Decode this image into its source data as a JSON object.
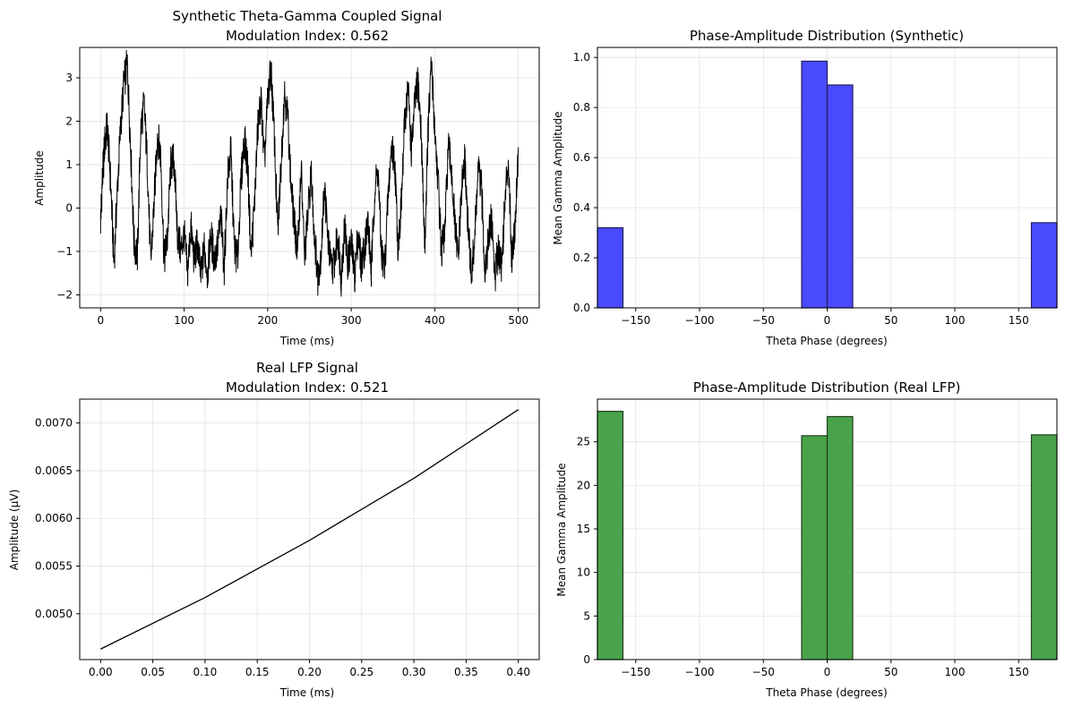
{
  "chart_data": [
    {
      "type": "line",
      "title": "Synthetic Theta-Gamma Coupled Signal",
      "subtitle": "Modulation Index: 0.562",
      "xlabel": "Time (ms)",
      "ylabel": "Amplitude",
      "xlim": [
        -25,
        525
      ],
      "ylim": [
        -2.3,
        3.7
      ],
      "xticks": [
        0,
        100,
        200,
        300,
        400,
        500
      ],
      "xtick_labels": [
        "0",
        "100",
        "200",
        "300",
        "400",
        "500"
      ],
      "yticks": [
        -2,
        -1,
        0,
        1,
        2,
        3
      ],
      "ytick_labels": [
        "−2",
        "−1",
        "0",
        "1",
        "2",
        "3"
      ],
      "grid": true,
      "line_color": "#000000",
      "series": [
        {
          "x": [
            0,
            2,
            5,
            8,
            12,
            16,
            20,
            24,
            28,
            32,
            36,
            40,
            44,
            48,
            52,
            56,
            60,
            64,
            68,
            72,
            76,
            80,
            84,
            88,
            92,
            96,
            100,
            104,
            108,
            112,
            116,
            120,
            124,
            128,
            132,
            136,
            140,
            144,
            148,
            152,
            156,
            160,
            164,
            168,
            172,
            176,
            180,
            184,
            188,
            192,
            196,
            200,
            204,
            208,
            212,
            216,
            220,
            224,
            228,
            232,
            236,
            240,
            244,
            248,
            252,
            256,
            260,
            264,
            268,
            272,
            276,
            280,
            284,
            288,
            292,
            296,
            300,
            304,
            308,
            312,
            316,
            320,
            324,
            328,
            332,
            336,
            340,
            344,
            348,
            352,
            356,
            360,
            364,
            368,
            372,
            376,
            380,
            384,
            388,
            392,
            396,
            400,
            404,
            408,
            412,
            416,
            420,
            424,
            428,
            432,
            436,
            440,
            444,
            448,
            452,
            456,
            460,
            464,
            468,
            472,
            476,
            480,
            484,
            488,
            492,
            496,
            500
          ],
          "y": [
            -0.3,
            0.6,
            1.5,
            1.9,
            0.6,
            -1.3,
            0.4,
            1.9,
            2.9,
            3.3,
            1.4,
            -0.8,
            -1.1,
            1.8,
            2.4,
            1.0,
            -1.3,
            0.1,
            1.7,
            1.2,
            -1.2,
            -0.7,
            1.0,
            1.1,
            -0.6,
            -1.0,
            -0.6,
            -1.5,
            -0.4,
            -1.2,
            -0.8,
            -1.6,
            -0.9,
            -1.5,
            -0.6,
            -1.2,
            -0.9,
            -0.2,
            -1.4,
            0.7,
            1.3,
            -0.9,
            -1.2,
            0.6,
            1.6,
            1.0,
            -1.1,
            0.0,
            1.8,
            2.5,
            1.0,
            2.5,
            3.2,
            1.6,
            -0.6,
            1.0,
            2.7,
            2.1,
            0.5,
            -0.4,
            -1.0,
            1.0,
            -1.2,
            -0.2,
            0.8,
            -0.6,
            -1.6,
            -1.0,
            0.5,
            -0.7,
            -1.4,
            -1.2,
            -0.6,
            -1.6,
            -0.4,
            -1.3,
            -0.8,
            -1.6,
            -0.6,
            -1.3,
            -0.9,
            -0.3,
            -1.5,
            0.4,
            0.9,
            -1.0,
            -1.4,
            0.2,
            1.4,
            1.1,
            -0.9,
            0.1,
            2.0,
            2.8,
            1.3,
            2.4,
            2.9,
            1.6,
            -0.9,
            1.8,
            3.3,
            1.8,
            0.6,
            -1.0,
            -0.6,
            1.4,
            0.9,
            -0.4,
            -1.2,
            0.4,
            1.1,
            -0.5,
            -1.6,
            -0.6,
            0.9,
            0.4,
            -1.4,
            -0.8,
            -0.2,
            -1.6,
            -0.9,
            -1.3,
            0.1,
            1.2,
            -1.1,
            -0.4,
            1.4
          ]
        }
      ]
    },
    {
      "type": "bar",
      "title": "Phase-Amplitude Distribution (Synthetic)",
      "xlabel": "Theta Phase (degrees)",
      "ylabel": "Mean Gamma Amplitude",
      "xlim": [
        -180,
        180
      ],
      "ylim": [
        0,
        1.04
      ],
      "xticks": [
        -150,
        -100,
        -50,
        0,
        50,
        100,
        150
      ],
      "xtick_labels": [
        "−150",
        "−100",
        "−50",
        "0",
        "50",
        "100",
        "150"
      ],
      "yticks": [
        0,
        0.2,
        0.4,
        0.6,
        0.8,
        1.0
      ],
      "ytick_labels": [
        "0.0",
        "0.2",
        "0.4",
        "0.6",
        "0.8",
        "1.0"
      ],
      "grid": true,
      "bar_color": "#4a4aff",
      "bar_edge_color": "#1f1f5f",
      "bin_edges": [
        -180,
        -160,
        -20,
        0,
        20,
        160,
        180
      ],
      "values": [
        0.32,
        0,
        0.985,
        0.89,
        0,
        0.34
      ]
    },
    {
      "type": "line",
      "title": "Real LFP Signal",
      "subtitle": "Modulation Index: 0.521",
      "xlabel": "Time (ms)",
      "ylabel": "Amplitude (μV)",
      "xlim": [
        -0.02,
        0.42
      ],
      "ylim": [
        0.00452,
        0.00725
      ],
      "xticks": [
        0,
        0.05,
        0.1,
        0.15,
        0.2,
        0.25,
        0.3,
        0.35,
        0.4
      ],
      "xtick_labels": [
        "0.00",
        "0.05",
        "0.10",
        "0.15",
        "0.20",
        "0.25",
        "0.30",
        "0.35",
        "0.40"
      ],
      "yticks": [
        0.005,
        0.0055,
        0.006,
        0.0065,
        0.007
      ],
      "ytick_labels": [
        "0.0050",
        "0.0055",
        "0.0060",
        "0.0065",
        "0.0070"
      ],
      "grid": true,
      "line_color": "#000000",
      "series": [
        {
          "x": [
            0,
            0.1,
            0.2,
            0.3,
            0.4
          ],
          "y": [
            0.00463,
            0.00517,
            0.00577,
            0.00642,
            0.00714
          ]
        }
      ]
    },
    {
      "type": "bar",
      "title": "Phase-Amplitude Distribution (Real LFP)",
      "xlabel": "Theta Phase (degrees)",
      "ylabel": "Mean Gamma Amplitude",
      "xlim": [
        -180,
        180
      ],
      "ylim": [
        0,
        29.9
      ],
      "xticks": [
        -150,
        -100,
        -50,
        0,
        50,
        100,
        150
      ],
      "xtick_labels": [
        "−150",
        "−100",
        "−50",
        "0",
        "50",
        "100",
        "150"
      ],
      "yticks": [
        0,
        5,
        10,
        15,
        20,
        25
      ],
      "ytick_labels": [
        "0",
        "5",
        "10",
        "15",
        "20",
        "25"
      ],
      "grid": true,
      "bar_color": "#4aa34a",
      "bar_edge_color": "#1e3d1e",
      "bin_edges": [
        -180,
        -160,
        -20,
        0,
        20,
        160,
        180
      ],
      "values": [
        28.5,
        0,
        25.7,
        27.9,
        0,
        25.8
      ]
    }
  ]
}
